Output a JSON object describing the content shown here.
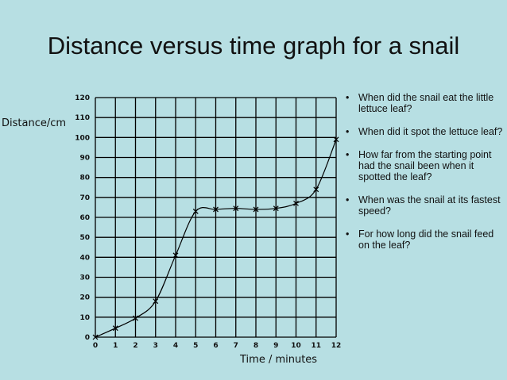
{
  "title": "Distance versus time graph for a snail",
  "chart_data": {
    "type": "line",
    "xlabel": "Time / minutes",
    "ylabel": "Distance/cm",
    "xlim": [
      0,
      12
    ],
    "ylim": [
      0,
      120
    ],
    "x_ticks": [
      0,
      1,
      2,
      3,
      4,
      5,
      6,
      7,
      8,
      9,
      10,
      11,
      12
    ],
    "y_ticks": [
      0,
      10,
      20,
      30,
      40,
      50,
      60,
      70,
      80,
      90,
      100,
      110,
      120
    ],
    "grid": true,
    "series": [
      {
        "marker": "x",
        "color": "#000000",
        "x": [
          0,
          1,
          2,
          3,
          4,
          5,
          6,
          7,
          8,
          9,
          10,
          11,
          12
        ],
        "y": [
          0,
          4.5,
          9.5,
          18,
          41,
          63,
          64,
          64.5,
          64,
          64.5,
          67,
          74,
          99
        ]
      }
    ]
  },
  "questions": [
    "When did the snail eat the little lettuce leaf?",
    "When did it spot the lettuce leaf?",
    "How far from the starting point had the snail been when it spotted the leaf?",
    "When was the snail at its fastest speed?",
    "For how long did the snail feed on the leaf?"
  ]
}
